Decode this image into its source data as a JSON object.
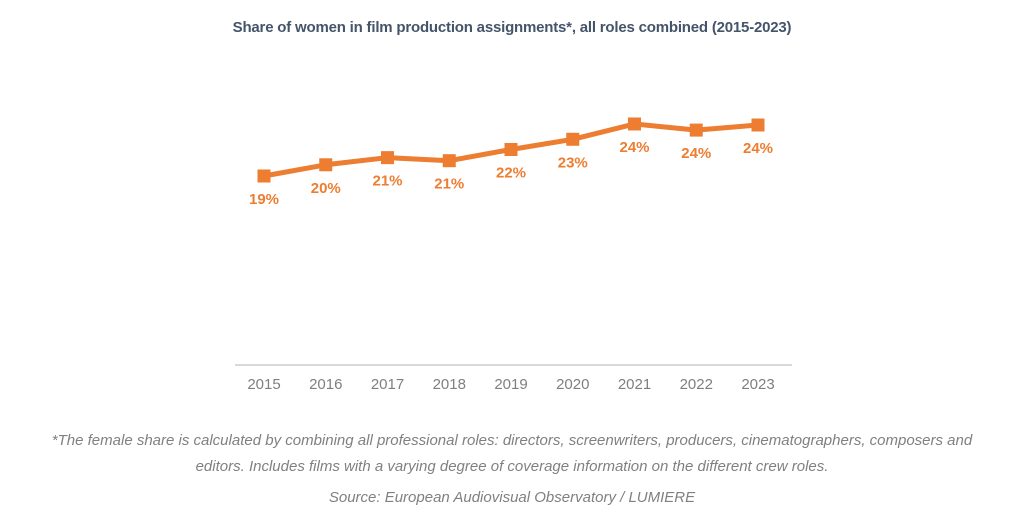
{
  "chart_data": {
    "type": "line",
    "title": "Share of women in film production assignments*, all roles combined (2015-2023)",
    "categories": [
      "2015",
      "2016",
      "2017",
      "2018",
      "2019",
      "2020",
      "2021",
      "2022",
      "2023"
    ],
    "values": [
      19,
      20,
      21,
      21,
      22,
      23,
      24,
      24,
      24
    ],
    "data_labels": [
      "19%",
      "20%",
      "21%",
      "21%",
      "22%",
      "23%",
      "24%",
      "24%",
      "24%"
    ],
    "estimated_values": [
      19.0,
      20.1,
      20.8,
      20.5,
      21.6,
      22.6,
      24.1,
      23.5,
      24.0
    ],
    "xlabel": "",
    "ylabel": "",
    "grid": false,
    "legend": false,
    "marker": "square",
    "data_label_position": "below",
    "colors": {
      "line": "#ED7D31",
      "data_label": "#ED7D31",
      "axis_line": "#D9D9D9",
      "tick_label": "#7F7F7F",
      "title": "#44546A"
    }
  },
  "footnote_lines": [
    "*The female share is calculated by combining all professional roles: directors, screenwriters, producers, cinematographers, composers and",
    "editors. Includes films with a varying degree of coverage information on the different crew roles."
  ],
  "source": "Source: European Audiovisual Observatory / LUMIERE"
}
